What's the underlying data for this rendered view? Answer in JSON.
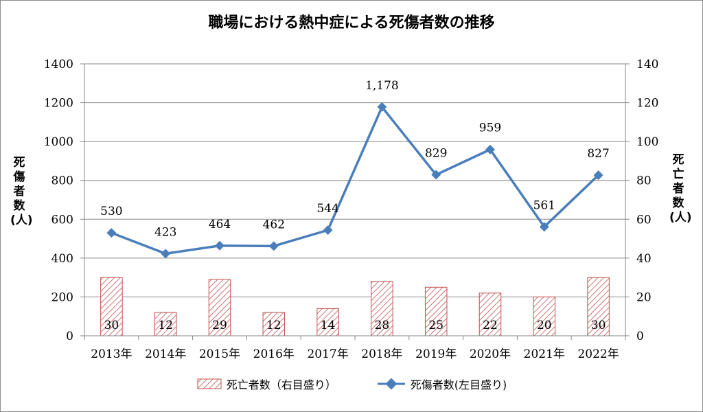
{
  "chart_data": {
    "type": "bar+line",
    "title": "職場における熱中症による死傷者数の推移",
    "categories": [
      "2013年",
      "2014年",
      "2015年",
      "2016年",
      "2017年",
      "2018年",
      "2019年",
      "2020年",
      "2021年",
      "2022年"
    ],
    "series": [
      {
        "name": "死亡者数（右目盛り）",
        "type": "bar",
        "axis": "right",
        "values": [
          30,
          12,
          29,
          12,
          14,
          28,
          25,
          22,
          20,
          30
        ],
        "labels": [
          "30",
          "12",
          "29",
          "12",
          "14",
          "28",
          "25",
          "22",
          "20",
          "30"
        ],
        "color": "#c0504d"
      },
      {
        "name": "死傷者数(左目盛り)",
        "type": "line",
        "axis": "left",
        "values": [
          530,
          423,
          464,
          462,
          544,
          1178,
          829,
          959,
          561,
          827
        ],
        "labels": [
          "530",
          "423",
          "464",
          "462",
          "544",
          "1,178",
          "829",
          "959",
          "561",
          "827"
        ],
        "color": "#4a7ebb"
      }
    ],
    "ylabel_left": "死傷者数(人)",
    "ylabel_right": "死亡者数(人)",
    "ylim_left": [
      0,
      1400
    ],
    "ylim_right": [
      0,
      140
    ],
    "yticks_left": [
      "0",
      "200",
      "400",
      "600",
      "800",
      "1000",
      "1200",
      "1400"
    ],
    "yticks_right": [
      "0",
      "20",
      "40",
      "60",
      "80",
      "100",
      "120",
      "140"
    ],
    "grid": true,
    "legend_position": "bottom"
  }
}
